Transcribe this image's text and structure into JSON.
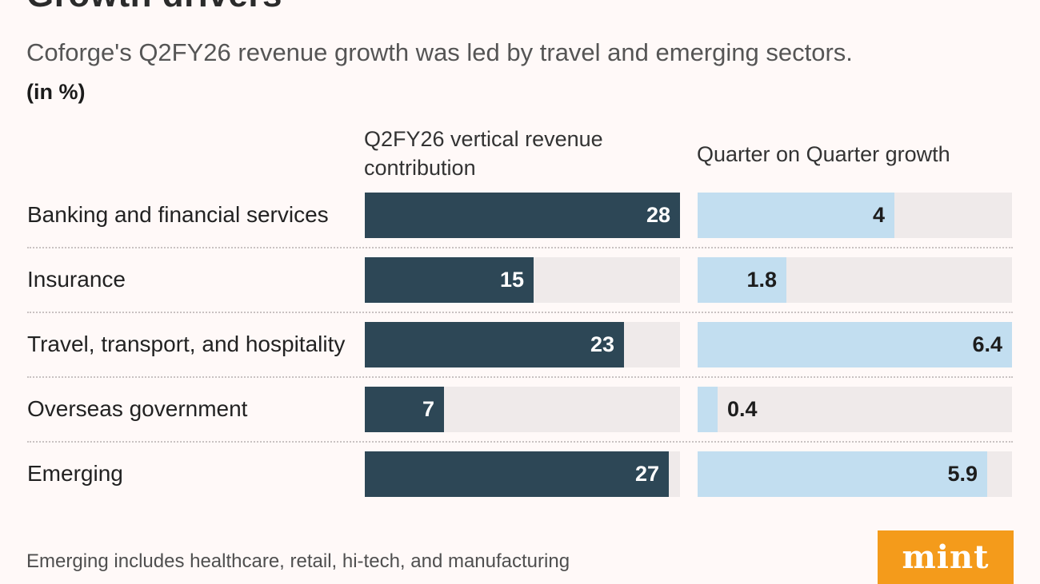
{
  "title": "Growth drivers",
  "subtitle": "Coforge's Q2FY26 revenue growth was led by travel and emerging sectors.",
  "unit_label": "(in %)",
  "footnote": "Emerging includes healthcare, retail, hi-tech, and manufacturing",
  "logo": {
    "text": "mint",
    "color": "#f49b1b"
  },
  "colors": {
    "contribution_bar": "#2d4756",
    "growth_bar": "#c2def0",
    "track": "#efeaea",
    "background": "#fff9f8"
  },
  "chart_data": {
    "type": "bar",
    "orientation": "horizontal",
    "title": "Growth drivers",
    "subtitle": "Coforge's Q2FY26 revenue growth was led by travel and emerging sectors.",
    "units": "%",
    "categories": [
      "Banking and financial services",
      "Insurance",
      "Travel, transport, and hospitality",
      "Overseas government",
      "Emerging"
    ],
    "series": [
      {
        "name": "Q2FY26 vertical revenue contribution",
        "values": [
          28,
          15,
          23,
          7,
          27
        ],
        "labels": [
          "28",
          "15",
          "23",
          "7",
          "27"
        ],
        "xlim": [
          0,
          28
        ],
        "color": "#2d4756"
      },
      {
        "name": "Quarter on Quarter growth",
        "values": [
          4,
          1.8,
          6.4,
          0.4,
          5.9
        ],
        "labels": [
          "4",
          "1.8",
          "6.4",
          "0.4",
          "5.9"
        ],
        "xlim": [
          0,
          6.4
        ],
        "color": "#c2def0"
      }
    ],
    "xlabel": "",
    "ylabel": "",
    "grid": false,
    "legend": "column headers"
  }
}
